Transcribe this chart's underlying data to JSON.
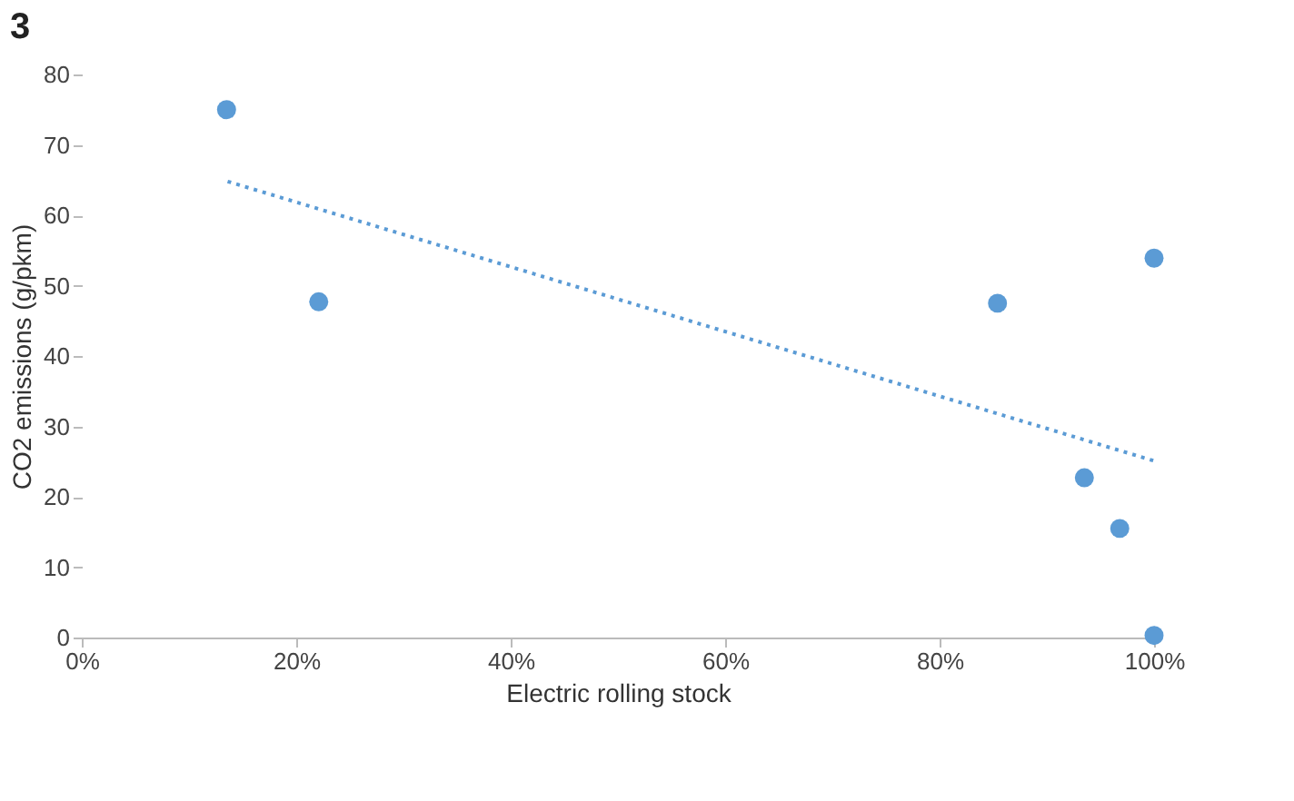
{
  "chart_data": {
    "type": "scatter",
    "title": "3",
    "xlabel": "Electric rolling stock",
    "ylabel": "CO2 emissions (g/pkm)",
    "xlim": [
      0,
      1
    ],
    "xticks": [
      {
        "value": 0,
        "label": "0%"
      },
      {
        "value": 0.2,
        "label": "20%"
      },
      {
        "value": 0.4,
        "label": "40%"
      },
      {
        "value": 0.6,
        "label": "60%"
      },
      {
        "value": 0.8,
        "label": "80%"
      },
      {
        "value": 1,
        "label": "100%"
      }
    ],
    "ylim": [
      0,
      80
    ],
    "yticks": [
      0,
      10,
      20,
      30,
      40,
      50,
      60,
      70,
      80
    ],
    "grid": false,
    "series": [
      {
        "color": "#5b9bd5",
        "marker": "circle",
        "x": [
          0.135,
          0.221,
          0.854,
          1.0,
          0.935,
          0.968,
          1.0
        ],
        "values": [
          75,
          47.7,
          47.5,
          53.9,
          22.7,
          15.5,
          0.3
        ]
      },
      {
        "type": "line",
        "color": "#5b9bd5",
        "line_style": "dotted",
        "marker": "none",
        "x": [
          0.136,
          1.0
        ],
        "values": [
          64.8,
          25.1
        ]
      }
    ]
  }
}
